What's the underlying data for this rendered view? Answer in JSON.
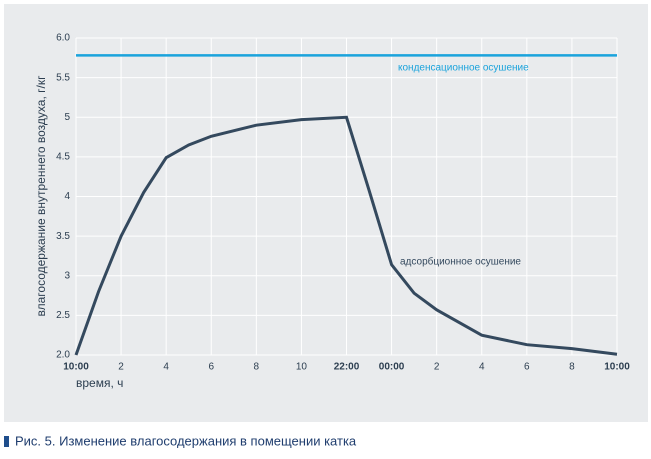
{
  "chart_data": {
    "type": "line",
    "caption": "Рис. 5. Изменение влагосодержания в помещении катка",
    "xlabel": "время, ч",
    "ylabel": "влагосодержание внутреннего воздуха, г/кг",
    "x": [
      0,
      1,
      2,
      3,
      4,
      5,
      6,
      8,
      10,
      12,
      13,
      14,
      15,
      16,
      18,
      20,
      22,
      24
    ],
    "series": [
      {
        "name": "конденсационное осушение",
        "color": "#1aa3dc",
        "values": [
          5.78,
          5.78,
          5.78,
          5.78,
          5.78,
          5.78,
          5.78,
          5.78,
          5.78,
          5.78,
          5.78,
          5.78,
          5.78,
          5.78,
          5.78,
          5.78,
          5.78,
          5.78
        ]
      },
      {
        "name": "адсорбционное осушение",
        "color": "#34495e",
        "values": [
          2.0,
          2.8,
          3.5,
          4.05,
          4.49,
          4.65,
          4.76,
          4.9,
          4.97,
          5.0,
          4.08,
          3.14,
          2.78,
          2.57,
          2.25,
          2.13,
          2.08,
          2.01
        ]
      }
    ],
    "xlim": [
      0,
      24
    ],
    "xticks": [
      {
        "value": 0,
        "label": "10:00"
      },
      2,
      4,
      6,
      8,
      10,
      {
        "value": 12,
        "label": "22:00"
      },
      {
        "value": 14,
        "label": "00:00"
      },
      {
        "value": 16,
        "label": "2"
      },
      {
        "value": 18,
        "label": "4"
      },
      {
        "value": 20,
        "label": "6"
      },
      {
        "value": 22,
        "label": "8"
      },
      {
        "value": 24,
        "label": "10:00"
      }
    ],
    "ylim": [
      2.0,
      6.0
    ],
    "yticks": [
      {
        "value": 2.0,
        "label": "2.0"
      },
      2.5,
      3.0,
      3.5,
      4.0,
      4.5,
      5.0,
      5.5,
      {
        "value": 6.0,
        "label": "6.0"
      }
    ],
    "grid": true
  }
}
